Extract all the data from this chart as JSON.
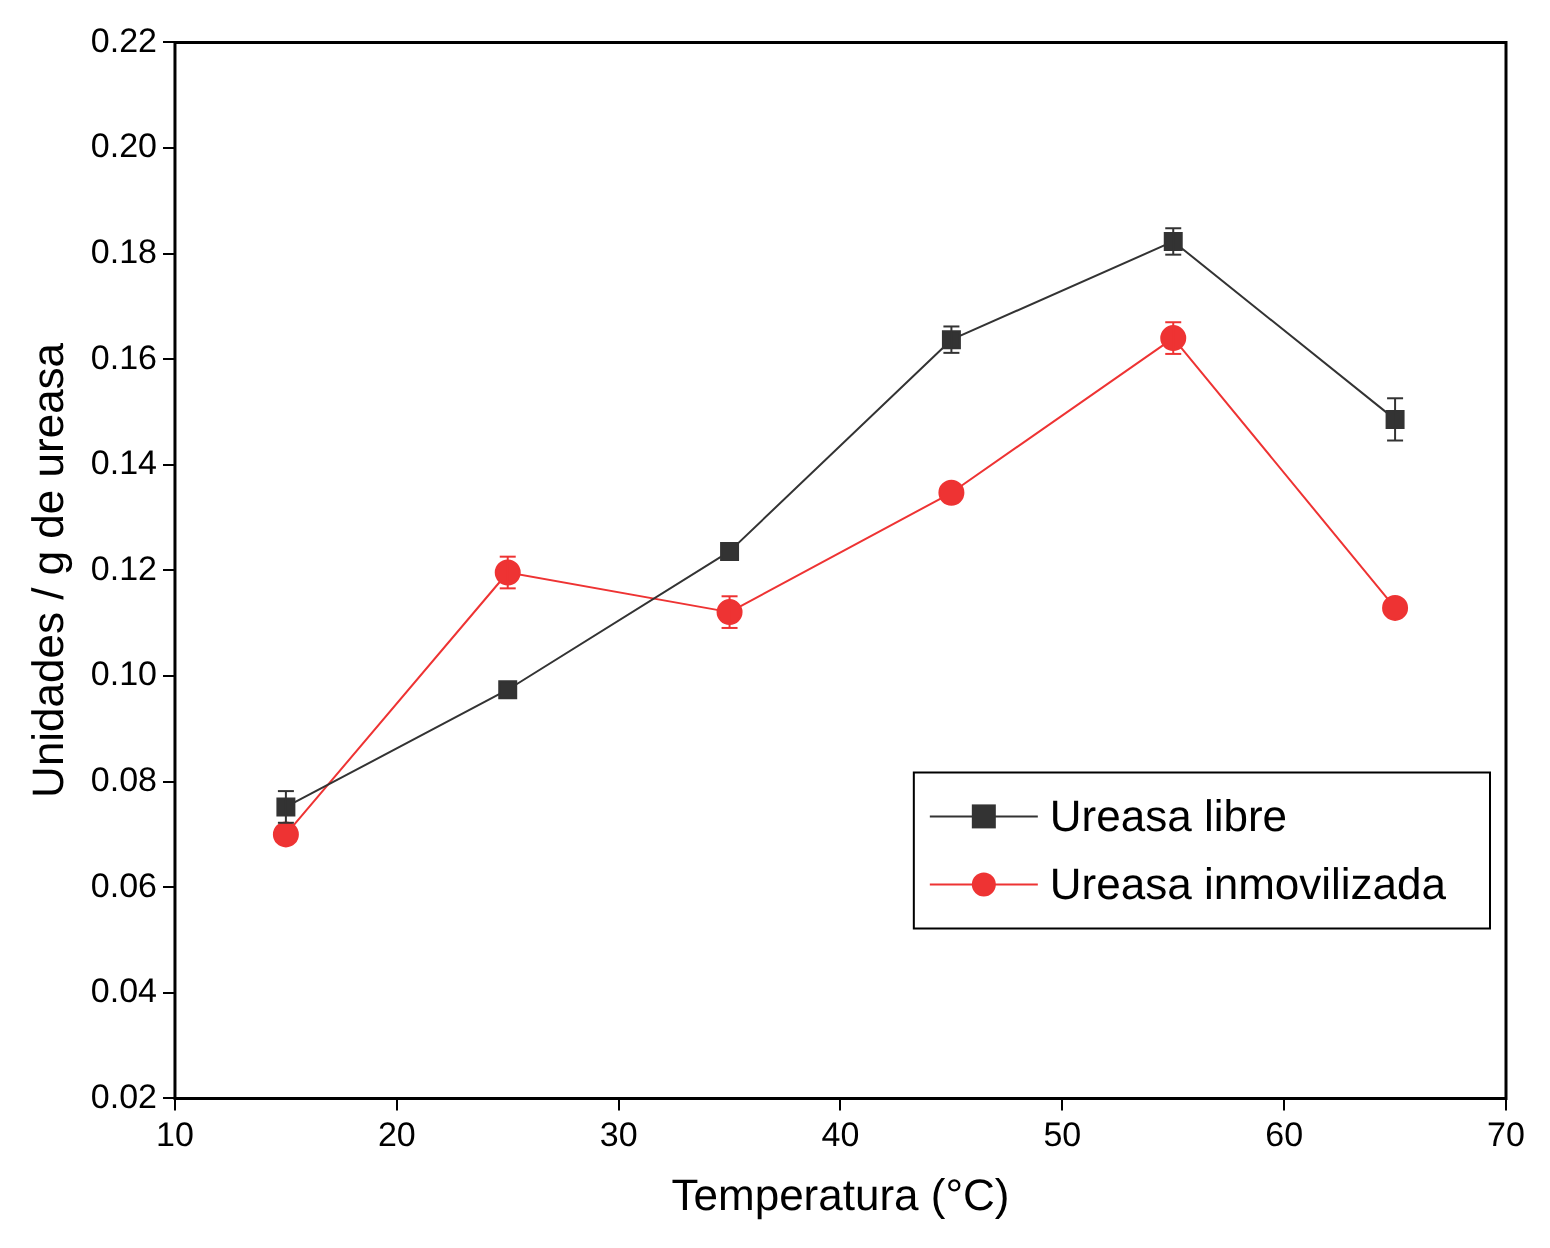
{
  "chart_data": {
    "type": "line",
    "xlabel": "Temperatura (°C)",
    "ylabel": "Unidades / g de ureasa",
    "x": [
      15,
      25,
      35,
      45,
      55,
      65
    ],
    "series": [
      {
        "name": "Ureasa libre",
        "color": "#333333",
        "marker": "square",
        "values": [
          0.0752,
          0.0974,
          0.1236,
          0.1637,
          0.1823,
          0.1486
        ],
        "errors": [
          0.003,
          null,
          null,
          0.0025,
          0.0025,
          0.004
        ]
      },
      {
        "name": "Ureasa inmovilizada",
        "color": "#ee3333",
        "marker": "circle",
        "values": [
          0.07,
          0.1196,
          0.1121,
          0.1347,
          0.164,
          0.1129
        ],
        "errors": [
          null,
          0.003,
          0.003,
          null,
          0.003,
          null
        ]
      }
    ],
    "xlim": [
      10,
      70
    ],
    "xticks": [
      10,
      20,
      30,
      40,
      50,
      60,
      70
    ],
    "ylim": [
      0.02,
      0.22
    ],
    "yticks": [
      {
        "value": 0.02,
        "label": "0.02"
      },
      {
        "value": 0.04,
        "label": "0.04"
      },
      {
        "value": 0.06,
        "label": "0.06"
      },
      {
        "value": 0.08,
        "label": "0.08"
      },
      {
        "value": 0.1,
        "label": "0.10"
      },
      {
        "value": 0.12,
        "label": "0.12"
      },
      {
        "value": 0.14,
        "label": "0.14"
      },
      {
        "value": 0.16,
        "label": "0.16"
      },
      {
        "value": 0.18,
        "label": "0.18"
      },
      {
        "value": 0.2,
        "label": "0.20"
      },
      {
        "value": 0.22,
        "label": "0.22"
      }
    ],
    "grid": false,
    "legend": "bottom right",
    "line_style": "solid"
  }
}
